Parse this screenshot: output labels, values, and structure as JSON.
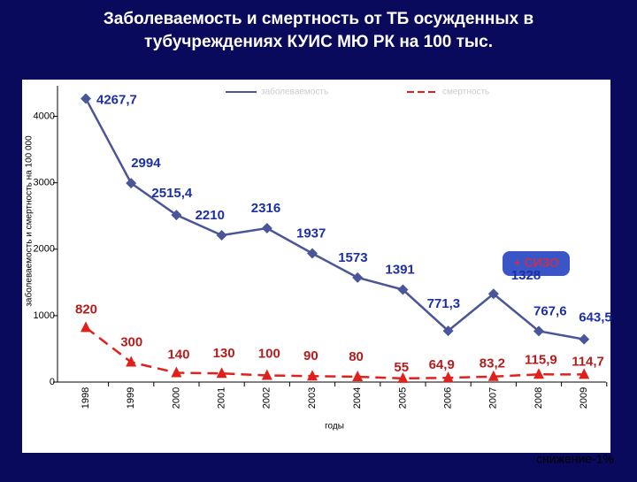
{
  "chart_data": {
    "type": "line",
    "title_lines": [
      "Заболеваемость и смертность от ТБ осужденных в",
      "тубучреждениях КУИС МЮ РК на 100 тыс."
    ],
    "y_label": "заболеваемость и смертность на 100 000",
    "x_label": "годы",
    "categories": [
      "1998",
      "1999",
      "2000",
      "2001",
      "2002",
      "2003",
      "2004",
      "2005",
      "2006",
      "2007",
      "2008",
      "2009"
    ],
    "series": [
      {
        "name": "заболеваемость",
        "color": "#4a5699",
        "values": [
          4267.7,
          2994,
          2515.4,
          2210,
          2316,
          1937,
          1573,
          1391,
          771.3,
          1328,
          767.6,
          643.5
        ],
        "value_labels": [
          "4267,7",
          "2994",
          "2515,4",
          "2210",
          "2316",
          "1937",
          "1573",
          "1391",
          "771,3",
          "1328",
          "767,6",
          "643,5"
        ]
      },
      {
        "name": "смертность",
        "color": "#e0201c",
        "values": [
          820,
          300,
          140,
          130,
          100,
          90,
          80,
          55,
          64.9,
          83.2,
          115.9,
          114.7
        ],
        "value_labels": [
          "820",
          "300",
          "140",
          "130",
          "100",
          "90",
          "80",
          "55",
          "64,9",
          "83,2",
          "115,9",
          "114,7"
        ]
      }
    ],
    "ylim": [
      0,
      4500
    ],
    "yticks": [
      0,
      1000,
      2000,
      3000,
      4000
    ],
    "annotations": [
      "+ СИЗО",
      "снижение-1%"
    ]
  }
}
